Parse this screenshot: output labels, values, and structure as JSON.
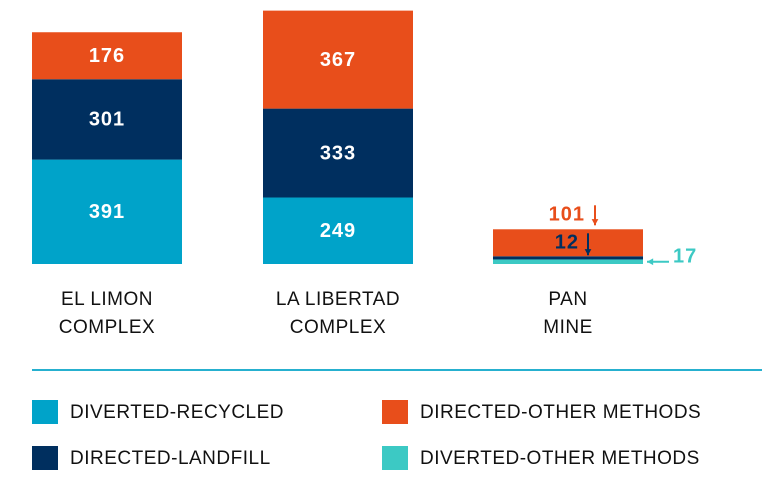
{
  "chart_data": {
    "type": "stacked_bar",
    "categories": [
      [
        "EL LIMON",
        "COMPLEX"
      ],
      [
        "LA LIBERTAD",
        "COMPLEX"
      ],
      [
        "PAN",
        "MINE"
      ]
    ],
    "series": [
      {
        "name": "DIVERTED-RECYCLED",
        "color": "#00a3c9",
        "values": [
          391,
          249,
          null
        ]
      },
      {
        "name": "DIVERTED-OTHER METHODS",
        "color": "#3cc9c4",
        "values": [
          null,
          null,
          17
        ]
      },
      {
        "name": "DIRECTED-LANDFILL",
        "color": "#002f5f",
        "values": [
          301,
          333,
          12
        ]
      },
      {
        "name": "DIRECTED-OTHER METHODS",
        "color": "#e84e1b",
        "values": [
          176,
          367,
          101
        ]
      }
    ]
  }
}
